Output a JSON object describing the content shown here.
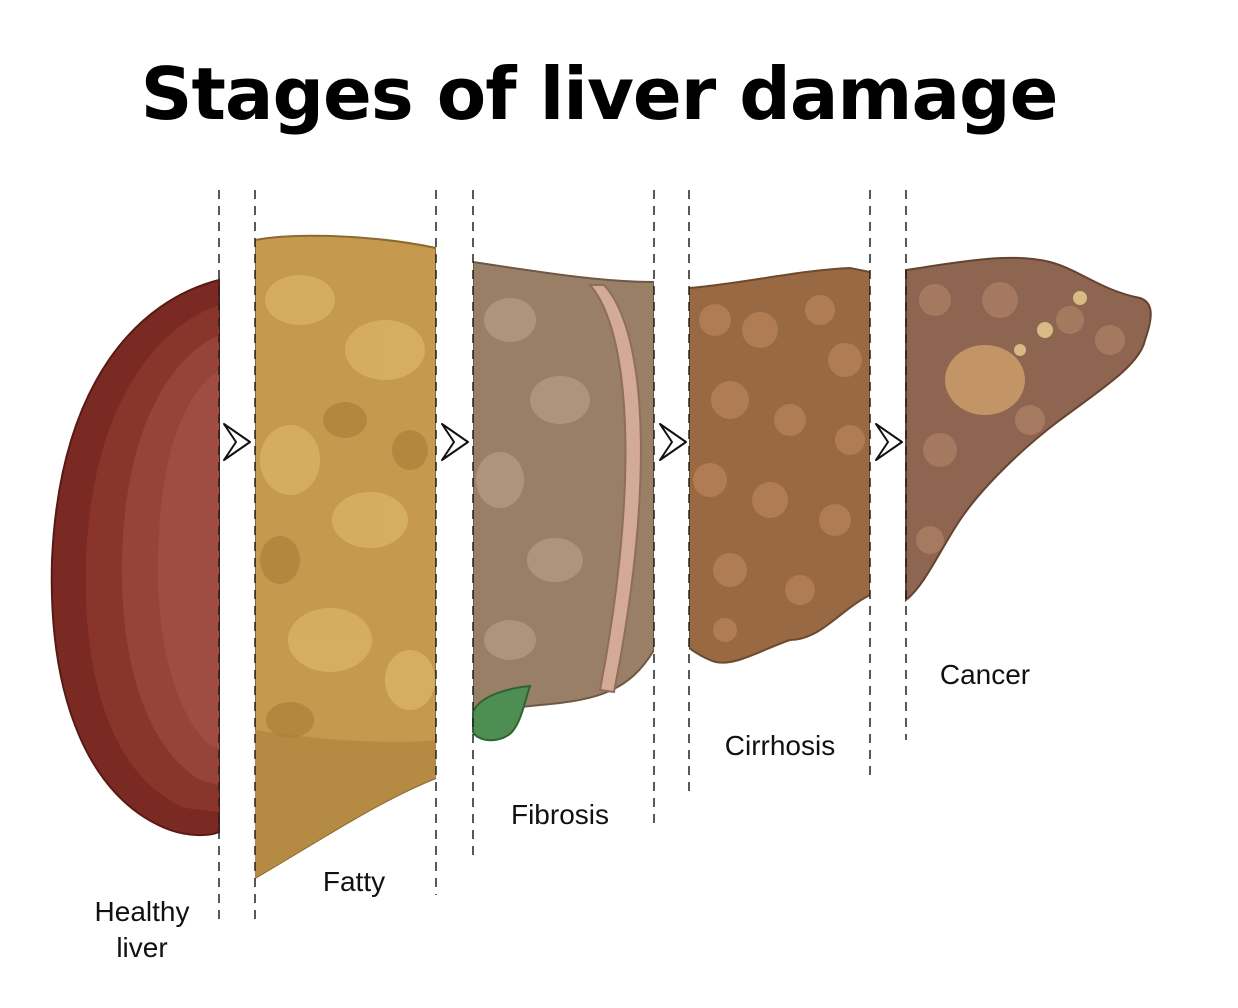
{
  "title": "Stages of liver damage",
  "stages": [
    {
      "label_lines": [
        "Healthy",
        "liver"
      ]
    },
    {
      "label_lines": [
        "Fatty"
      ]
    },
    {
      "label_lines": [
        "Fibrosis"
      ]
    },
    {
      "label_lines": [
        "Cirrhosis"
      ]
    },
    {
      "label_lines": [
        "Cancer"
      ]
    }
  ],
  "colors": {
    "healthy": "#8e3b31",
    "fatty": "#c79a4d",
    "fibrosis": "#9b8068",
    "cirrhosis": "#9a6a42",
    "cancer": "#8e6650",
    "gallbladder": "#4f8e52"
  }
}
